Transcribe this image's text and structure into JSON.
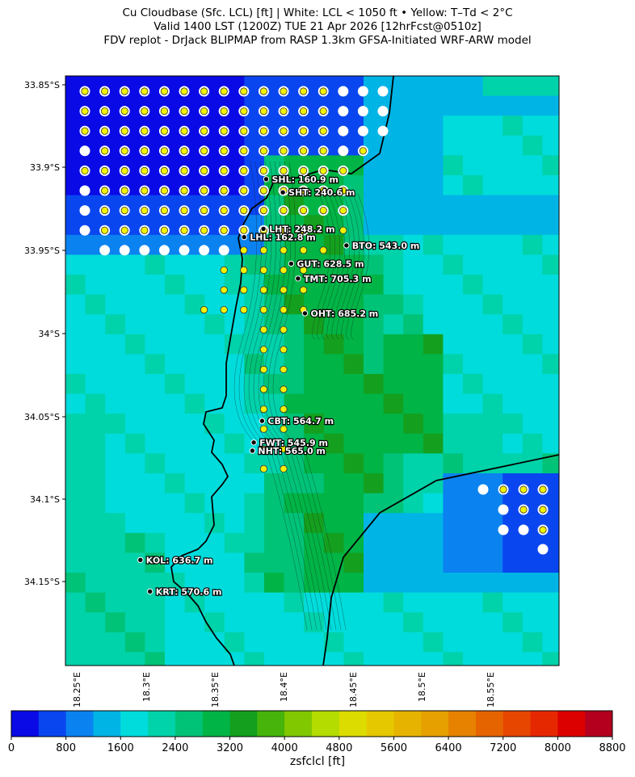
{
  "title": {
    "line1": "Cu Cloudbase (Sfc. LCL) [ft]  |  White: LCL < 1050 ft • Yellow: T–Td < 2°C",
    "line2": "Valid 1400 LST (1200Z) TUE 21 Apr 2026 [12hrFcst@0510z]",
    "line3": "FDV replot - DrJack BLIPMAP from RASP 1.3km GFSA-Initiated WRF-ARW model"
  },
  "chart_data": {
    "type": "heatmap",
    "variable": "zsfclcl",
    "units": "ft",
    "y_ticks": [
      "33.85°S",
      "33.9°S",
      "33.95°S",
      "34°S",
      "34.05°S",
      "34.1°S",
      "34.15°S"
    ],
    "x_ticks": [
      "18.25°E",
      "18.3°E",
      "18.35°E",
      "18.4°E",
      "18.45°E",
      "18.5°E",
      "18.55°E"
    ],
    "xlim": [
      18.21,
      18.57
    ],
    "ylim": [
      -34.2,
      -33.845
    ],
    "colorbar": {
      "label": "zsfclcl [ft]",
      "ticks": [
        "0",
        "800",
        "1600",
        "2400",
        "3200",
        "4000",
        "4800",
        "5600",
        "6400",
        "7200",
        "8000",
        "8800"
      ],
      "levels": [
        0,
        400,
        800,
        1200,
        1600,
        2000,
        2400,
        2800,
        3200,
        3600,
        4000,
        4400,
        4800,
        5200,
        5600,
        6000,
        6400,
        6800,
        7200,
        7600,
        8000,
        8400,
        8800
      ],
      "colors": [
        "#0a0ae6",
        "#0a46f0",
        "#0a82f0",
        "#00b4e6",
        "#00dcdc",
        "#00d2aa",
        "#00c378",
        "#00b446",
        "#14a01e",
        "#46b40a",
        "#82c800",
        "#b4dc00",
        "#dcdc00",
        "#e6c800",
        "#e6b400",
        "#e6a000",
        "#e68200",
        "#e66400",
        "#e64600",
        "#e62800",
        "#dc0000",
        "#b4001e"
      ]
    },
    "stations": [
      {
        "id": "SHL",
        "label": "SHL: 160.9 m",
        "lat": -33.907,
        "lon": 18.387
      },
      {
        "id": "SHT",
        "label": "SHT: 240.6 m",
        "lat": -33.915,
        "lon": 18.399
      },
      {
        "id": "LHT",
        "label": "LHT: 248.2 m",
        "lat": -33.937,
        "lon": 18.385
      },
      {
        "id": "LHL",
        "label": "LHL: 162.8 m",
        "lat": -33.942,
        "lon": 18.371
      },
      {
        "id": "BTO",
        "label": "BTO: 543.0 m",
        "lat": -33.947,
        "lon": 18.445
      },
      {
        "id": "GUT",
        "label": "GUT: 628.5 m",
        "lat": -33.958,
        "lon": 18.405
      },
      {
        "id": "TMT",
        "label": "TMT: 705.3 m",
        "lat": -33.967,
        "lon": 18.41
      },
      {
        "id": "OHT",
        "label": "OHT: 685.2 m",
        "lat": -33.988,
        "lon": 18.415
      },
      {
        "id": "CBT",
        "label": "CBT: 564.7 m",
        "lat": -34.053,
        "lon": 18.384
      },
      {
        "id": "FWT",
        "label": "FWT: 545.9 m",
        "lat": -34.066,
        "lon": 18.378
      },
      {
        "id": "NHT",
        "label": "NHT: 565.0 m",
        "lat": -34.071,
        "lon": 18.377
      },
      {
        "id": "KOL",
        "label": "KOL: 636.7 m",
        "lat": -34.137,
        "lon": 18.296
      },
      {
        "id": "KRT",
        "label": "KRT: 570.6 m",
        "lat": -34.156,
        "lon": 18.303
      }
    ],
    "legend": {
      "white": "LCL < 1050 ft",
      "yellow": "T–Td < 2°C"
    }
  }
}
